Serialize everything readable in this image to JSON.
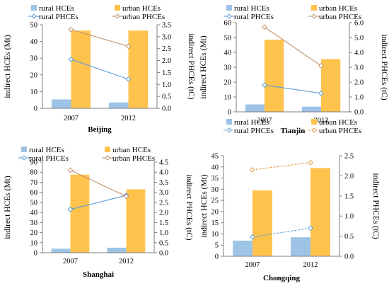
{
  "chart_data": [
    {
      "type": "bar",
      "title": "Beijing",
      "categories": [
        "2007",
        "2012"
      ],
      "ylabel": "indirect HCEs (Mt)",
      "ylim": [
        0,
        50
      ],
      "yticks": [
        "0",
        "10",
        "20",
        "30",
        "40",
        "50"
      ],
      "y2label": "indirect PHCEs (tC)",
      "y2lim": [
        0,
        3.5
      ],
      "y2ticks": [
        "0.0",
        "0.5",
        "1.0",
        "1.5",
        "2.0",
        "2.5",
        "3.0",
        "3.5"
      ],
      "series": [
        {
          "name": "rural HCEs",
          "kind": "bar",
          "axis": "left",
          "color": "#9dc3e6",
          "values": [
            5.3,
            3.5
          ]
        },
        {
          "name": "urban HCEs",
          "kind": "bar",
          "axis": "left",
          "color": "#ffc34d",
          "values": [
            46.5,
            46.5
          ]
        },
        {
          "name": "rural PHCEs",
          "kind": "line",
          "axis": "right",
          "color": "#5b9bd5",
          "values": [
            2.05,
            1.22
          ]
        },
        {
          "name": "urban PHCEs",
          "kind": "line",
          "axis": "right",
          "color": "#c0926a",
          "values": [
            3.3,
            2.6
          ]
        }
      ]
    },
    {
      "type": "bar",
      "title": "Tianjin",
      "categories": [
        "2007",
        "2012"
      ],
      "ylabel": "indirect HCEs (Mt)",
      "ylim": [
        0,
        60
      ],
      "yticks": [
        "0",
        "10",
        "20",
        "30",
        "40",
        "50",
        "60"
      ],
      "y2label": "indirect PHCEs (tC)",
      "y2lim": [
        0,
        6
      ],
      "y2ticks": [
        "0.0",
        "1.0",
        "2.0",
        "3.0",
        "4.0",
        "5.0",
        "6.0"
      ],
      "series": [
        {
          "name": "rural HCEs",
          "kind": "bar",
          "axis": "left",
          "color": "#9dc3e6",
          "values": [
            5.0,
            3.5
          ]
        },
        {
          "name": "urban HCEs",
          "kind": "bar",
          "axis": "left",
          "color": "#ffc34d",
          "values": [
            48.5,
            35.5
          ]
        },
        {
          "name": "rural PHCEs",
          "kind": "line",
          "axis": "right",
          "color": "#5b9bd5",
          "values": [
            1.8,
            1.25
          ]
        },
        {
          "name": "urban PHCEs",
          "kind": "line",
          "axis": "right",
          "color": "#c0926a",
          "values": [
            5.7,
            3.1
          ]
        }
      ]
    },
    {
      "type": "bar",
      "title": "Shanghai",
      "categories": [
        "2007",
        "2012"
      ],
      "ylabel": "indirect HCEs (Mt)",
      "ylim": [
        0,
        90
      ],
      "yticks": [
        "0",
        "10",
        "20",
        "30",
        "40",
        "50",
        "60",
        "70",
        "80",
        "90"
      ],
      "y2label": "indirect PHCEs (tC)",
      "y2lim": [
        0,
        4.5
      ],
      "y2ticks": [
        "0.0",
        "0.5",
        "1.0",
        "1.5",
        "2.0",
        "2.5",
        "3.0",
        "3.5",
        "4.0",
        "4.5"
      ],
      "series": [
        {
          "name": "rural HCEs",
          "kind": "bar",
          "axis": "left",
          "color": "#9dc3e6",
          "values": [
            4.0,
            5.0
          ]
        },
        {
          "name": "urban HCEs",
          "kind": "bar",
          "axis": "left",
          "color": "#ffc34d",
          "values": [
            77.5,
            63.0
          ]
        },
        {
          "name": "rural PHCEs",
          "kind": "line",
          "axis": "right",
          "color": "#5b9bd5",
          "values": [
            2.15,
            2.85
          ]
        },
        {
          "name": "urban PHCEs",
          "kind": "line",
          "axis": "right",
          "color": "#c0926a",
          "values": [
            4.1,
            2.8
          ]
        }
      ]
    },
    {
      "type": "bar",
      "title": "Chongqing",
      "categories": [
        "2007",
        "2012"
      ],
      "ylabel": "indirect HCEs (Mt)",
      "ylim": [
        0,
        45
      ],
      "yticks": [
        "0",
        "5",
        "10",
        "15",
        "20",
        "25",
        "30",
        "35",
        "40",
        "45"
      ],
      "y2label": "indirect PHCEs (tC)",
      "y2lim": [
        0,
        2.5
      ],
      "y2ticks": [
        "0.0",
        "0.5",
        "1.0",
        "1.5",
        "2.0",
        "2.5"
      ],
      "series": [
        {
          "name": "rural HCEs",
          "kind": "bar",
          "axis": "left",
          "color": "#9dc3e6",
          "values": [
            7.0,
            8.5
          ]
        },
        {
          "name": "urban HCEs",
          "kind": "bar",
          "axis": "left",
          "color": "#ffc34d",
          "values": [
            29.5,
            39.5
          ]
        },
        {
          "name": "rural PHCEs",
          "kind": "line",
          "axis": "right",
          "color": "#5b9bd5",
          "dashed": true,
          "values": [
            0.48,
            0.7
          ]
        },
        {
          "name": "urban PHCEs",
          "kind": "line",
          "axis": "right",
          "color": "#e69a4a",
          "dashed": true,
          "values": [
            2.15,
            2.33
          ]
        }
      ]
    }
  ]
}
